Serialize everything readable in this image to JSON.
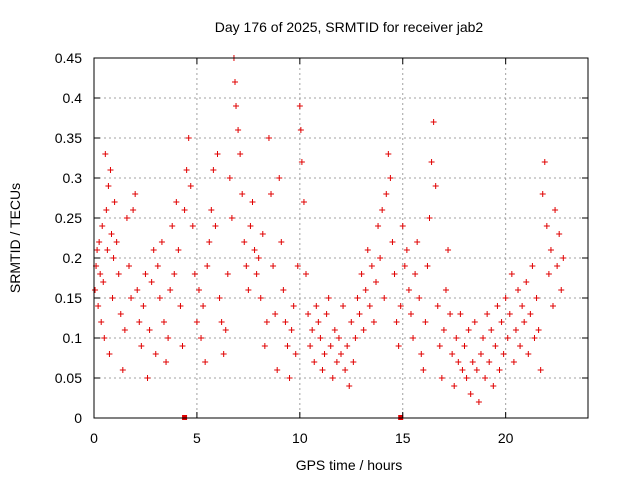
{
  "chart_data": {
    "type": "scatter",
    "title": "Day 176 of 2025, SRMTID for receiver jab2",
    "xlabel": "GPS time / hours",
    "ylabel": "SRMTID / TECUs",
    "xlim": [
      0,
      24
    ],
    "ylim": [
      0,
      0.45
    ],
    "xticks": [
      0,
      5,
      10,
      15,
      20
    ],
    "xtick_labels": [
      "0",
      "5",
      "10",
      "15",
      "20"
    ],
    "yticks": [
      0,
      0.05,
      0.1,
      0.15,
      0.2,
      0.25,
      0.3,
      0.35,
      0.4,
      0.45
    ],
    "ytick_labels": [
      "0",
      "0.05",
      "0.1",
      "0.15",
      "0.2",
      "0.25",
      "0.3",
      "0.35",
      "0.4",
      "0.45"
    ],
    "grid": true,
    "marker": "plus",
    "color": "#e00000",
    "series": [
      {
        "name": "SRMTID",
        "points": [
          [
            0.05,
            0.16
          ],
          [
            0.1,
            0.19
          ],
          [
            0.15,
            0.21
          ],
          [
            0.2,
            0.14
          ],
          [
            0.25,
            0.22
          ],
          [
            0.3,
            0.18
          ],
          [
            0.35,
            0.12
          ],
          [
            0.4,
            0.24
          ],
          [
            0.45,
            0.17
          ],
          [
            0.5,
            0.1
          ],
          [
            0.55,
            0.33
          ],
          [
            0.6,
            0.26
          ],
          [
            0.65,
            0.21
          ],
          [
            0.7,
            0.29
          ],
          [
            0.75,
            0.08
          ],
          [
            0.8,
            0.31
          ],
          [
            0.85,
            0.23
          ],
          [
            0.9,
            0.15
          ],
          [
            0.95,
            0.2
          ],
          [
            1.0,
            0.27
          ],
          [
            1.1,
            0.22
          ],
          [
            1.2,
            0.18
          ],
          [
            1.3,
            0.13
          ],
          [
            1.4,
            0.06
          ],
          [
            1.5,
            0.11
          ],
          [
            1.6,
            0.25
          ],
          [
            1.7,
            0.19
          ],
          [
            1.8,
            0.15
          ],
          [
            1.9,
            0.26
          ],
          [
            2.0,
            0.28
          ],
          [
            2.1,
            0.16
          ],
          [
            2.2,
            0.12
          ],
          [
            2.3,
            0.09
          ],
          [
            2.4,
            0.14
          ],
          [
            2.5,
            0.18
          ],
          [
            2.6,
            0.05
          ],
          [
            2.7,
            0.11
          ],
          [
            2.8,
            0.17
          ],
          [
            2.9,
            0.21
          ],
          [
            3.0,
            0.08
          ],
          [
            3.1,
            0.19
          ],
          [
            3.2,
            0.15
          ],
          [
            3.3,
            0.22
          ],
          [
            3.4,
            0.12
          ],
          [
            3.5,
            0.07
          ],
          [
            3.6,
            0.1
          ],
          [
            3.7,
            0.16
          ],
          [
            3.8,
            0.24
          ],
          [
            3.9,
            0.18
          ],
          [
            4.0,
            0.27
          ],
          [
            4.1,
            0.21
          ],
          [
            4.2,
            0.14
          ],
          [
            4.3,
            0.09
          ],
          [
            4.4,
            0.26
          ],
          [
            4.5,
            0.31
          ],
          [
            4.6,
            0.35
          ],
          [
            4.7,
            0.29
          ],
          [
            4.8,
            0.24
          ],
          [
            4.9,
            0.18
          ],
          [
            5.0,
            0.12
          ],
          [
            5.1,
            0.16
          ],
          [
            5.2,
            0.1
          ],
          [
            5.3,
            0.14
          ],
          [
            5.4,
            0.07
          ],
          [
            5.5,
            0.19
          ],
          [
            5.6,
            0.22
          ],
          [
            5.7,
            0.26
          ],
          [
            5.8,
            0.31
          ],
          [
            5.9,
            0.24
          ],
          [
            6.0,
            0.33
          ],
          [
            6.1,
            0.15
          ],
          [
            6.2,
            0.12
          ],
          [
            6.3,
            0.08
          ],
          [
            6.4,
            0.11
          ],
          [
            6.5,
            0.18
          ],
          [
            6.6,
            0.3
          ],
          [
            6.7,
            0.25
          ],
          [
            6.8,
            0.45
          ],
          [
            6.85,
            0.42
          ],
          [
            6.9,
            0.39
          ],
          [
            7.0,
            0.36
          ],
          [
            7.1,
            0.33
          ],
          [
            7.2,
            0.28
          ],
          [
            7.3,
            0.22
          ],
          [
            7.4,
            0.19
          ],
          [
            7.5,
            0.16
          ],
          [
            7.6,
            0.24
          ],
          [
            7.7,
            0.27
          ],
          [
            7.8,
            0.21
          ],
          [
            7.9,
            0.18
          ],
          [
            8.0,
            0.2
          ],
          [
            8.1,
            0.15
          ],
          [
            8.2,
            0.23
          ],
          [
            8.3,
            0.09
          ],
          [
            8.4,
            0.12
          ],
          [
            8.5,
            0.35
          ],
          [
            8.6,
            0.28
          ],
          [
            8.7,
            0.19
          ],
          [
            8.8,
            0.13
          ],
          [
            8.9,
            0.06
          ],
          [
            9.0,
            0.3
          ],
          [
            9.1,
            0.22
          ],
          [
            9.2,
            0.16
          ],
          [
            9.3,
            0.12
          ],
          [
            9.4,
            0.09
          ],
          [
            9.5,
            0.05
          ],
          [
            9.6,
            0.11
          ],
          [
            9.7,
            0.14
          ],
          [
            9.8,
            0.08
          ],
          [
            9.9,
            0.19
          ],
          [
            10.0,
            0.39
          ],
          [
            10.05,
            0.36
          ],
          [
            10.1,
            0.32
          ],
          [
            10.2,
            0.27
          ],
          [
            10.3,
            0.18
          ],
          [
            10.4,
            0.13
          ],
          [
            10.5,
            0.09
          ],
          [
            10.6,
            0.11
          ],
          [
            10.7,
            0.07
          ],
          [
            10.8,
            0.14
          ],
          [
            10.9,
            0.12
          ],
          [
            11.0,
            0.1
          ],
          [
            11.1,
            0.06
          ],
          [
            11.2,
            0.08
          ],
          [
            11.3,
            0.13
          ],
          [
            11.4,
            0.15
          ],
          [
            11.5,
            0.09
          ],
          [
            11.6,
            0.05
          ],
          [
            11.7,
            0.11
          ],
          [
            11.8,
            0.07
          ],
          [
            11.9,
            0.1
          ],
          [
            12.0,
            0.08
          ],
          [
            12.1,
            0.14
          ],
          [
            12.2,
            0.06
          ],
          [
            12.3,
            0.09
          ],
          [
            12.4,
            0.04
          ],
          [
            12.5,
            0.12
          ],
          [
            12.6,
            0.07
          ],
          [
            12.7,
            0.1
          ],
          [
            12.8,
            0.15
          ],
          [
            12.9,
            0.13
          ],
          [
            13.0,
            0.18
          ],
          [
            13.1,
            0.11
          ],
          [
            13.2,
            0.16
          ],
          [
            13.3,
            0.21
          ],
          [
            13.4,
            0.14
          ],
          [
            13.5,
            0.19
          ],
          [
            13.6,
            0.12
          ],
          [
            13.7,
            0.17
          ],
          [
            13.8,
            0.24
          ],
          [
            13.9,
            0.2
          ],
          [
            14.0,
            0.26
          ],
          [
            14.1,
            0.15
          ],
          [
            14.2,
            0.28
          ],
          [
            14.3,
            0.33
          ],
          [
            14.4,
            0.3
          ],
          [
            14.5,
            0.22
          ],
          [
            14.6,
            0.18
          ],
          [
            14.7,
            0.12
          ],
          [
            14.8,
            0.09
          ],
          [
            14.9,
            0.14
          ],
          [
            15.0,
            0.24
          ],
          [
            15.1,
            0.19
          ],
          [
            15.2,
            0.21
          ],
          [
            15.3,
            0.16
          ],
          [
            15.4,
            0.13
          ],
          [
            15.5,
            0.1
          ],
          [
            15.6,
            0.18
          ],
          [
            15.7,
            0.22
          ],
          [
            15.8,
            0.15
          ],
          [
            15.9,
            0.08
          ],
          [
            16.0,
            0.06
          ],
          [
            16.1,
            0.12
          ],
          [
            16.2,
            0.19
          ],
          [
            16.3,
            0.25
          ],
          [
            16.4,
            0.32
          ],
          [
            16.5,
            0.37
          ],
          [
            16.6,
            0.29
          ],
          [
            16.7,
            0.14
          ],
          [
            16.8,
            0.09
          ],
          [
            16.9,
            0.05
          ],
          [
            17.0,
            0.11
          ],
          [
            17.1,
            0.16
          ],
          [
            17.2,
            0.21
          ],
          [
            17.3,
            0.13
          ],
          [
            17.4,
            0.08
          ],
          [
            17.5,
            0.04
          ],
          [
            17.6,
            0.1
          ],
          [
            17.7,
            0.07
          ],
          [
            17.8,
            0.13
          ],
          [
            17.9,
            0.06
          ],
          [
            18.0,
            0.09
          ],
          [
            18.1,
            0.05
          ],
          [
            18.2,
            0.11
          ],
          [
            18.3,
            0.03
          ],
          [
            18.4,
            0.07
          ],
          [
            18.5,
            0.12
          ],
          [
            18.6,
            0.06
          ],
          [
            18.7,
            0.02
          ],
          [
            18.8,
            0.08
          ],
          [
            18.9,
            0.1
          ],
          [
            19.0,
            0.05
          ],
          [
            19.1,
            0.13
          ],
          [
            19.2,
            0.07
          ],
          [
            19.3,
            0.11
          ],
          [
            19.4,
            0.04
          ],
          [
            19.5,
            0.09
          ],
          [
            19.6,
            0.14
          ],
          [
            19.7,
            0.06
          ],
          [
            19.8,
            0.12
          ],
          [
            19.9,
            0.08
          ],
          [
            20.0,
            0.15
          ],
          [
            20.1,
            0.1
          ],
          [
            20.2,
            0.13
          ],
          [
            20.3,
            0.18
          ],
          [
            20.4,
            0.07
          ],
          [
            20.5,
            0.11
          ],
          [
            20.6,
            0.16
          ],
          [
            20.7,
            0.09
          ],
          [
            20.8,
            0.14
          ],
          [
            20.9,
            0.12
          ],
          [
            21.0,
            0.17
          ],
          [
            21.1,
            0.08
          ],
          [
            21.2,
            0.13
          ],
          [
            21.3,
            0.19
          ],
          [
            21.4,
            0.1
          ],
          [
            21.5,
            0.15
          ],
          [
            21.6,
            0.11
          ],
          [
            21.7,
            0.06
          ],
          [
            21.8,
            0.28
          ],
          [
            21.9,
            0.32
          ],
          [
            22.0,
            0.24
          ],
          [
            22.1,
            0.18
          ],
          [
            22.2,
            0.21
          ],
          [
            22.3,
            0.14
          ],
          [
            22.4,
            0.26
          ],
          [
            22.5,
            0.19
          ],
          [
            22.6,
            0.23
          ],
          [
            22.7,
            0.16
          ],
          [
            22.8,
            0.2
          ],
          [
            4.4,
            0.0
          ],
          [
            14.9,
            0.0
          ]
        ]
      }
    ]
  }
}
